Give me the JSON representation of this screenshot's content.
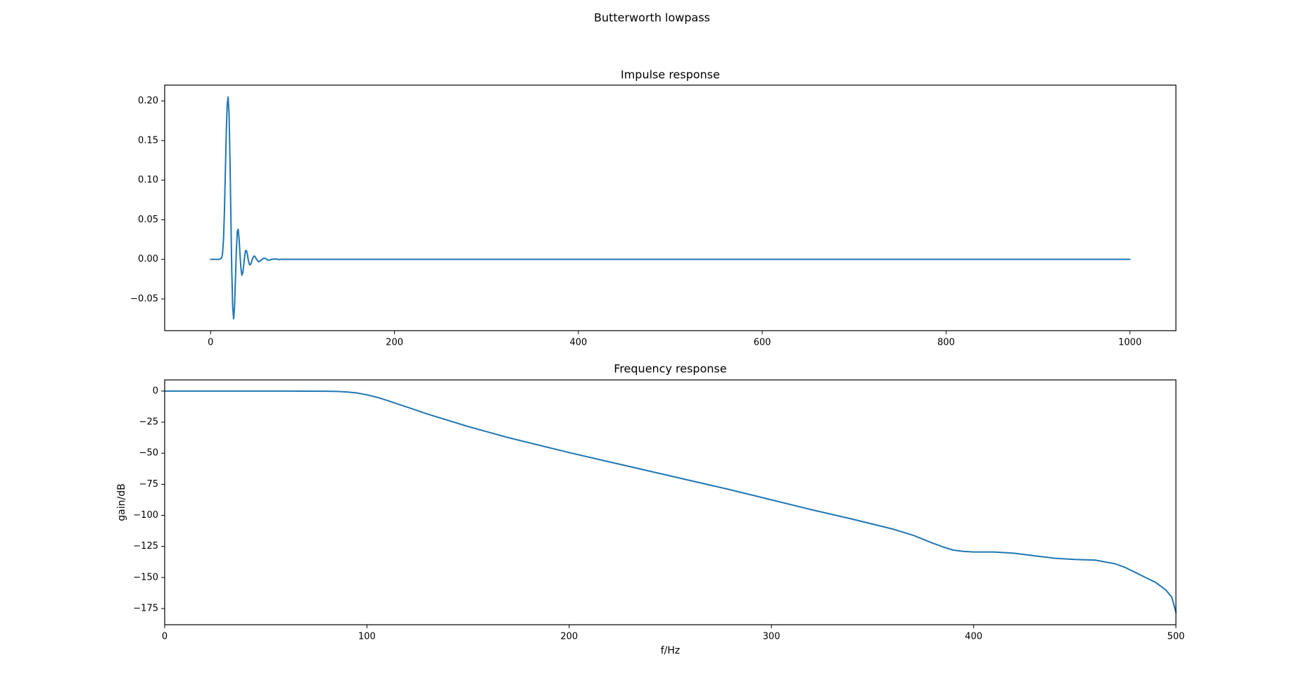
{
  "figure": {
    "suptitle": "Butterworth lowpass",
    "line_color": "#1f77b4"
  },
  "chart_data": [
    {
      "type": "line",
      "title": "Impulse response",
      "xlabel": "",
      "ylabel": "",
      "xlim": [
        -50,
        1050
      ],
      "ylim": [
        -0.09,
        0.22
      ],
      "xticks": [
        0,
        200,
        400,
        600,
        800,
        1000
      ],
      "xtick_labels": [
        "0",
        "200",
        "400",
        "600",
        "800",
        "1000"
      ],
      "yticks": [
        -0.05,
        0.0,
        0.05,
        0.1,
        0.15,
        0.2
      ],
      "ytick_labels": [
        "−0.05",
        "0.00",
        "0.05",
        "0.10",
        "0.15",
        "0.20"
      ],
      "grid": false,
      "series": [
        {
          "x": [
            0,
            5,
            8,
            10,
            12,
            13,
            14,
            15,
            16,
            17,
            18,
            19,
            20,
            21,
            22,
            23,
            24,
            25,
            26,
            27,
            28,
            29,
            30,
            31,
            32,
            33,
            34,
            35,
            36,
            37,
            38,
            39,
            40,
            41,
            42,
            43,
            44,
            45,
            46,
            47,
            48,
            50,
            52,
            54,
            56,
            58,
            60,
            62,
            64,
            66,
            70,
            72,
            74,
            76,
            80,
            85,
            1000
          ],
          "y": [
            0,
            0,
            0,
            0.0002,
            0.002,
            0.008,
            0.025,
            0.06,
            0.11,
            0.16,
            0.195,
            0.205,
            0.185,
            0.13,
            0.055,
            -0.015,
            -0.06,
            -0.075,
            -0.06,
            -0.025,
            0.012,
            0.035,
            0.038,
            0.025,
            0.005,
            -0.012,
            -0.02,
            -0.017,
            -0.007,
            0.004,
            0.011,
            0.011,
            0.006,
            -0.001,
            -0.006,
            -0.007,
            -0.005,
            -0.001,
            0.002,
            0.004,
            0.004,
            0.0,
            -0.003,
            -0.002,
            0.0,
            0.0015,
            0.001,
            -0.001,
            -0.001,
            0.0,
            0.0005,
            0.0003,
            -0.0002,
            0,
            0,
            0,
            0
          ]
        }
      ]
    },
    {
      "type": "line",
      "title": "Frequency response",
      "xlabel": "f/Hz",
      "ylabel": "gain/dB",
      "xlim": [
        0,
        500
      ],
      "ylim": [
        -188,
        9
      ],
      "xticks": [
        0,
        100,
        200,
        300,
        400,
        500
      ],
      "xtick_labels": [
        "0",
        "100",
        "200",
        "300",
        "400",
        "500"
      ],
      "yticks": [
        0,
        -25,
        -50,
        -75,
        -100,
        -125,
        -150,
        -175
      ],
      "ytick_labels": [
        "0",
        "−25",
        "−50",
        "−75",
        "−100",
        "−125",
        "−150",
        "−175"
      ],
      "grid": false,
      "series": [
        {
          "x": [
            0,
            40,
            60,
            80,
            85,
            90,
            95,
            100,
            105,
            110,
            120,
            130,
            140,
            150,
            160,
            170,
            180,
            200,
            220,
            240,
            260,
            280,
            300,
            320,
            340,
            360,
            370,
            380,
            385,
            390,
            395,
            400,
            410,
            420,
            430,
            440,
            450,
            460,
            470,
            475,
            480,
            485,
            490,
            495,
            498,
            500
          ],
          "y": [
            0,
            0,
            0,
            -0.1,
            -0.3,
            -0.7,
            -1.5,
            -3,
            -5,
            -7.5,
            -13,
            -18.5,
            -23.5,
            -28.5,
            -33,
            -37.5,
            -41.5,
            -49.5,
            -57,
            -64.5,
            -72,
            -79.5,
            -87.5,
            -95.5,
            -103,
            -111,
            -116,
            -122.5,
            -125.5,
            -128,
            -129,
            -129.5,
            -129.5,
            -130.5,
            -132.5,
            -134.5,
            -135.5,
            -136,
            -139,
            -142,
            -146,
            -150,
            -154,
            -160,
            -166,
            -178
          ]
        }
      ]
    }
  ]
}
